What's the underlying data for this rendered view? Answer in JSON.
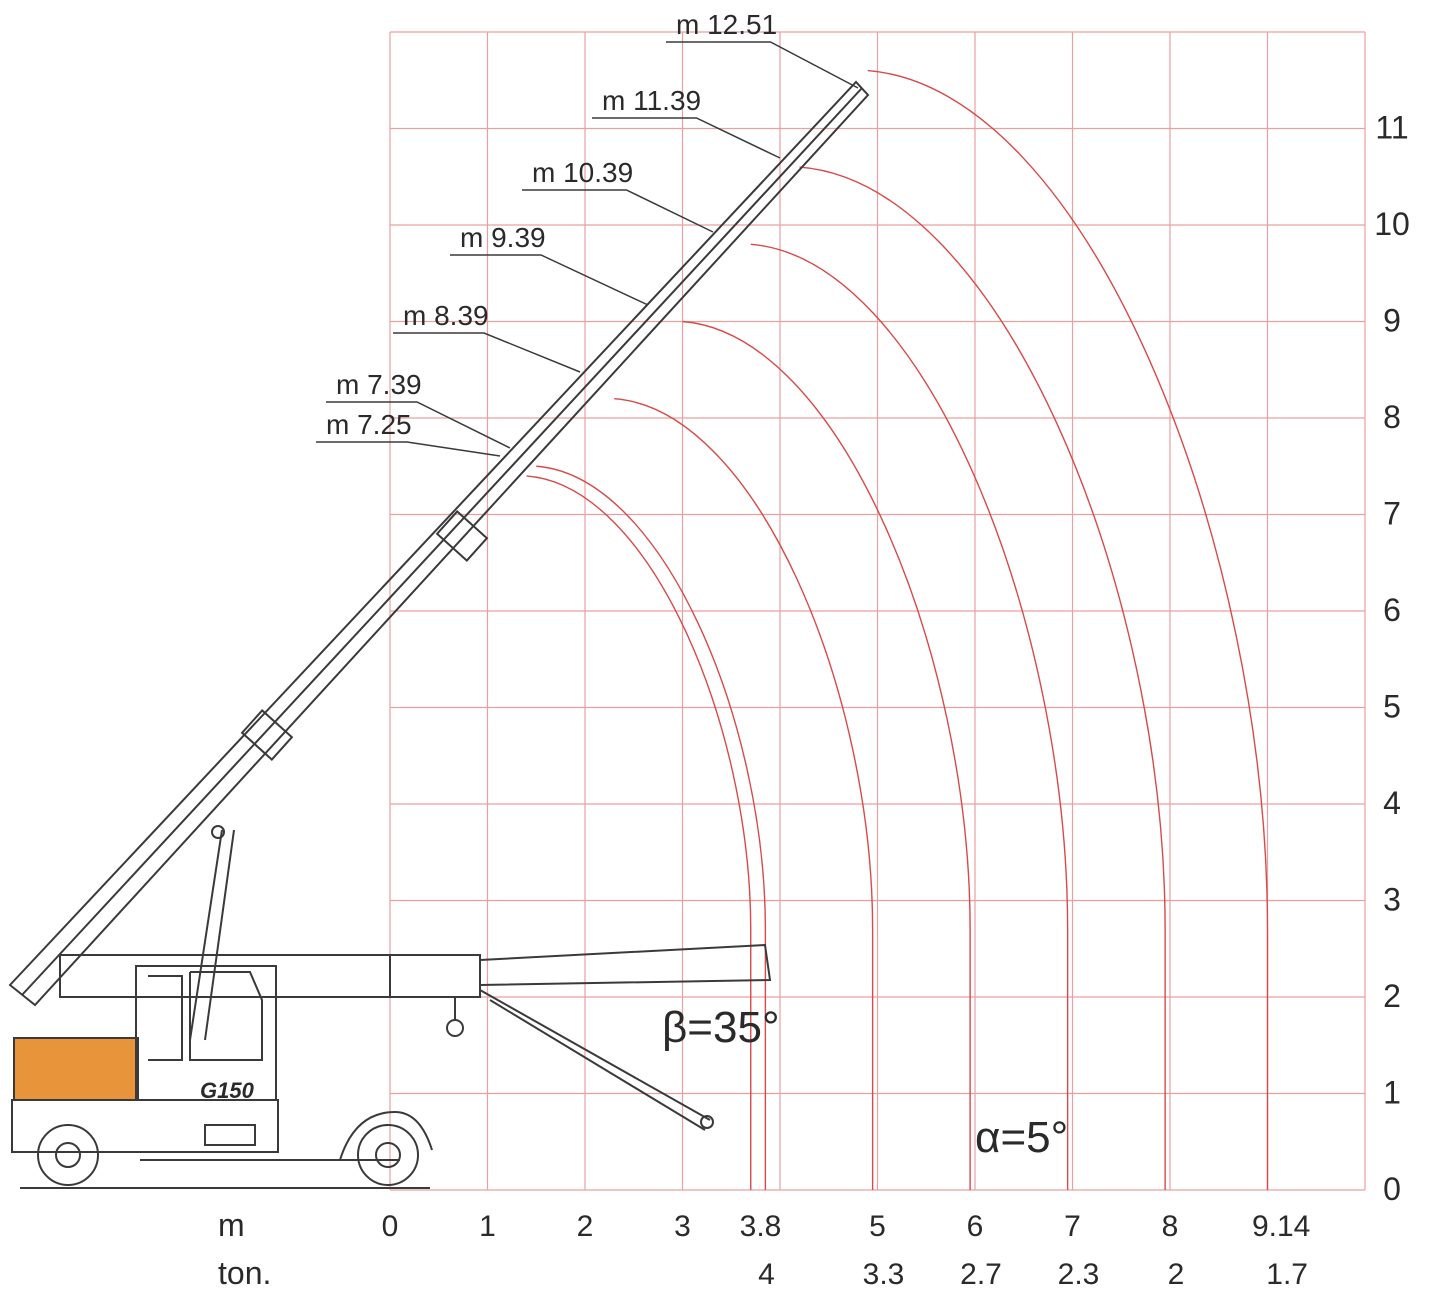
{
  "chart_data": {
    "type": "line",
    "title": "",
    "x_axis": {
      "unit_label": "m",
      "tick_labels": [
        "0",
        "1",
        "2",
        "3",
        "3.8",
        "5",
        "6",
        "7",
        "8",
        "9.14"
      ],
      "ticks": [
        0,
        1,
        2,
        3,
        3.8,
        5,
        6,
        7,
        8,
        9.14
      ],
      "range": [
        0,
        10
      ]
    },
    "capacity_axis": {
      "unit_label": "ton.",
      "tick_labels": [
        "4",
        "3.3",
        "2.7",
        "2.3",
        "2",
        "1.7"
      ],
      "at_radius": [
        3.8,
        5,
        6,
        7,
        8,
        9.14
      ]
    },
    "y_axis": {
      "tick_labels": [
        "0",
        "1",
        "2",
        "3",
        "4",
        "5",
        "6",
        "7",
        "8",
        "9",
        "10",
        "11"
      ],
      "range": [
        0,
        12
      ]
    },
    "grid": true,
    "boom_length_labels": [
      "m 12.51",
      "m 11.39",
      "m 10.39",
      "m 9.39",
      "m 8.39",
      "m 7.39",
      "m 7.25"
    ],
    "series": [
      {
        "name": "m 7.25",
        "start": [
          1.4,
          7.4
        ],
        "end": [
          3.7,
          2.7
        ]
      },
      {
        "name": "m 7.39",
        "start": [
          1.5,
          7.5
        ],
        "end": [
          3.85,
          2.7
        ]
      },
      {
        "name": "m 8.39",
        "start": [
          2.3,
          8.2
        ],
        "end": [
          4.95,
          2.7
        ]
      },
      {
        "name": "m 9.39",
        "start": [
          3.0,
          9.0
        ],
        "end": [
          5.95,
          2.7
        ]
      },
      {
        "name": "m 10.39",
        "start": [
          3.7,
          9.8
        ],
        "end": [
          6.95,
          2.7
        ]
      },
      {
        "name": "m 11.39",
        "start": [
          4.2,
          10.6
        ],
        "end": [
          7.95,
          2.7
        ]
      },
      {
        "name": "m 12.51",
        "start": [
          4.9,
          11.6
        ],
        "end": [
          9.0,
          2.7
        ]
      }
    ],
    "annotations": [
      "β=35°",
      "α=5°"
    ]
  },
  "truck": {
    "model_label": "G150",
    "colors": {
      "cab_block": "#e8943a",
      "outline": "#3a3a3a",
      "grid": "#e9a0a0",
      "curve": "#d84a4a"
    }
  }
}
